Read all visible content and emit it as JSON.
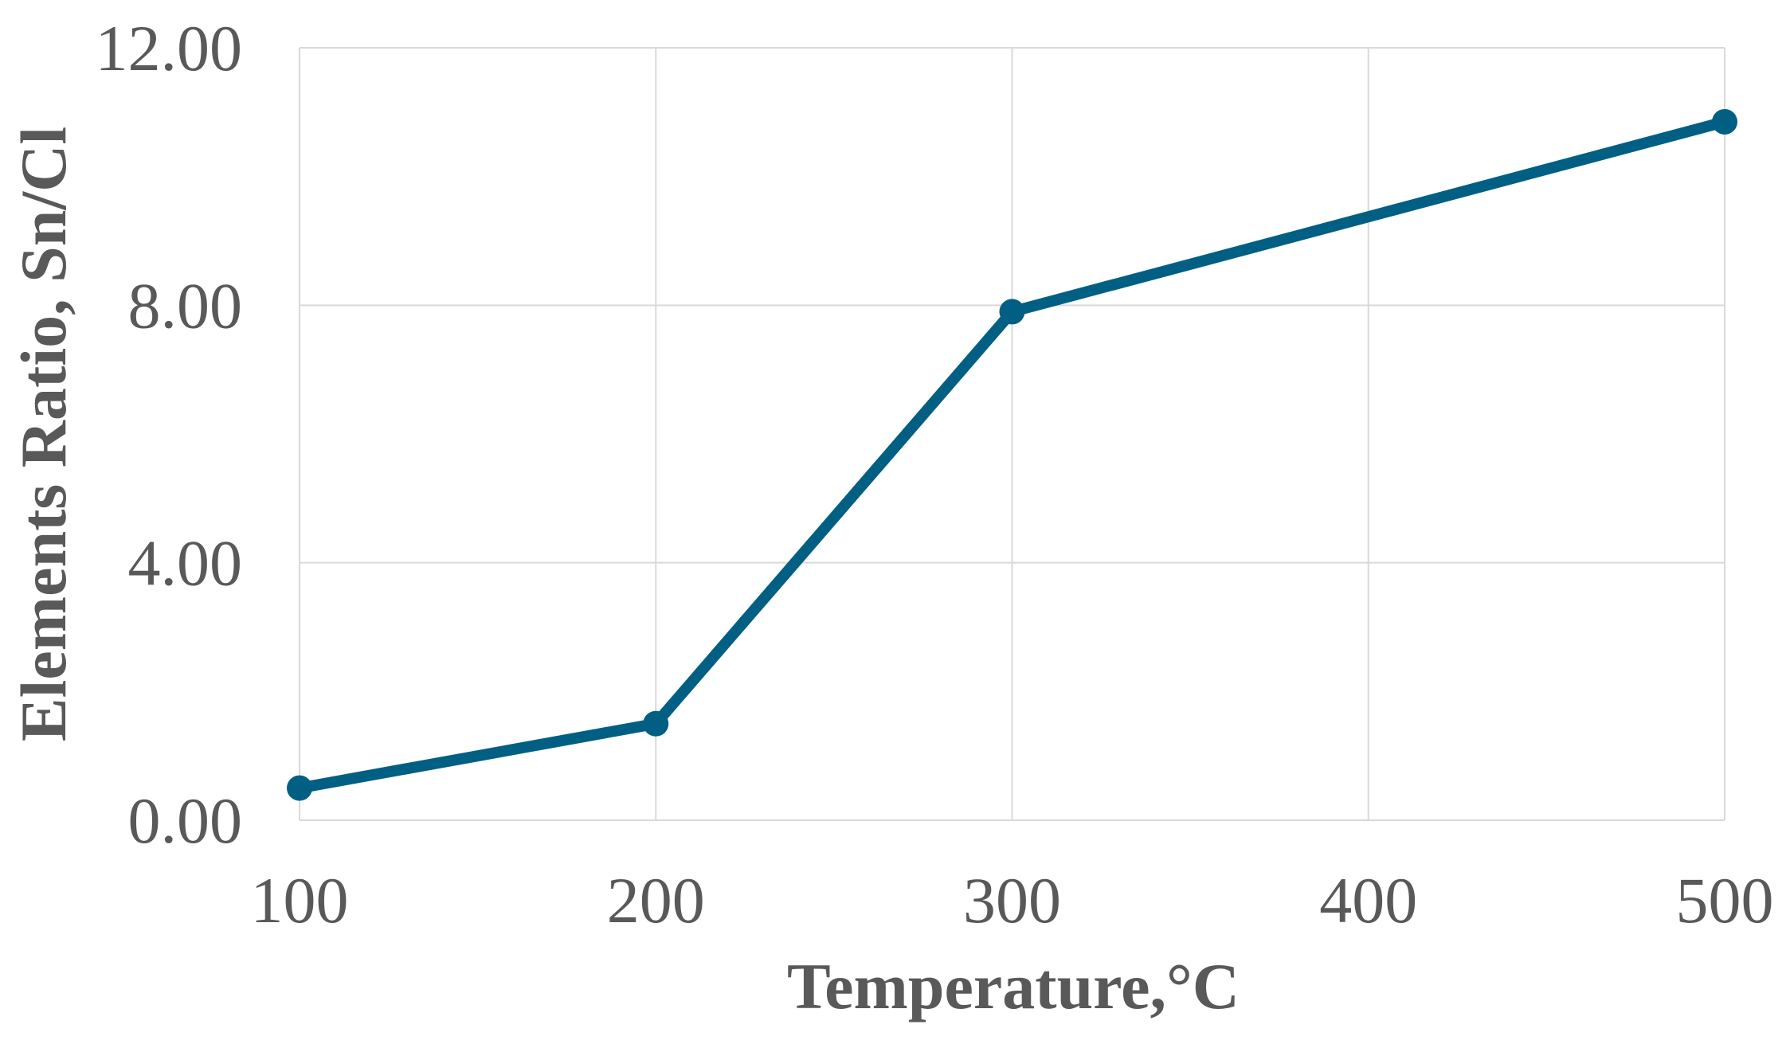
{
  "chart_data": {
    "type": "line",
    "title": "",
    "xlabel": "Temperature,°C",
    "ylabel": "Elements Ratio, Sn/Cl",
    "x_categories": [
      "100",
      "200",
      "300",
      "400",
      "500"
    ],
    "y_ticks": [
      "0.00",
      "4.00",
      "8.00",
      "12.00"
    ],
    "ylim": [
      0,
      12
    ],
    "grid": true,
    "legend": "none",
    "series": [
      {
        "color": "#005f83",
        "points": [
          {
            "x": 100,
            "y": 0.5
          },
          {
            "x": 200,
            "y": 1.5
          },
          {
            "x": 300,
            "y": 7.9
          },
          {
            "x": 500,
            "y": 10.85
          }
        ]
      }
    ]
  }
}
